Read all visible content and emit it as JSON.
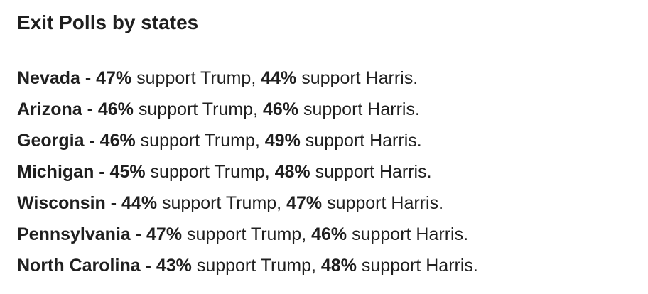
{
  "header": {
    "title": "Exit Polls by states"
  },
  "items": [
    {
      "lead": "Nevada - 47%",
      "middle": " support Trump, ",
      "harris": "44%",
      "tail": " support Harris."
    },
    {
      "lead": "Arizona - 46%",
      "middle": " support Trump, ",
      "harris": "46%",
      "tail": " support Harris."
    },
    {
      "lead": "Georgia - 46%",
      "middle": " support Trump, ",
      "harris": "49%",
      "tail": " support Harris."
    },
    {
      "lead": "Michigan - 45%",
      "middle": " support Trump, ",
      "harris": "48%",
      "tail": " support Harris."
    },
    {
      "lead": "Wisconsin - 44%",
      "middle": " support Trump, ",
      "harris": "47%",
      "tail": " support Harris."
    },
    {
      "lead": "Pennsylvania - 47%",
      "middle": " support Trump, ",
      "harris": "46%",
      "tail": " support Harris."
    },
    {
      "lead": "North Carolina - 43%",
      "middle": " support Trump, ",
      "harris": "48%",
      "tail": " support Harris."
    }
  ]
}
